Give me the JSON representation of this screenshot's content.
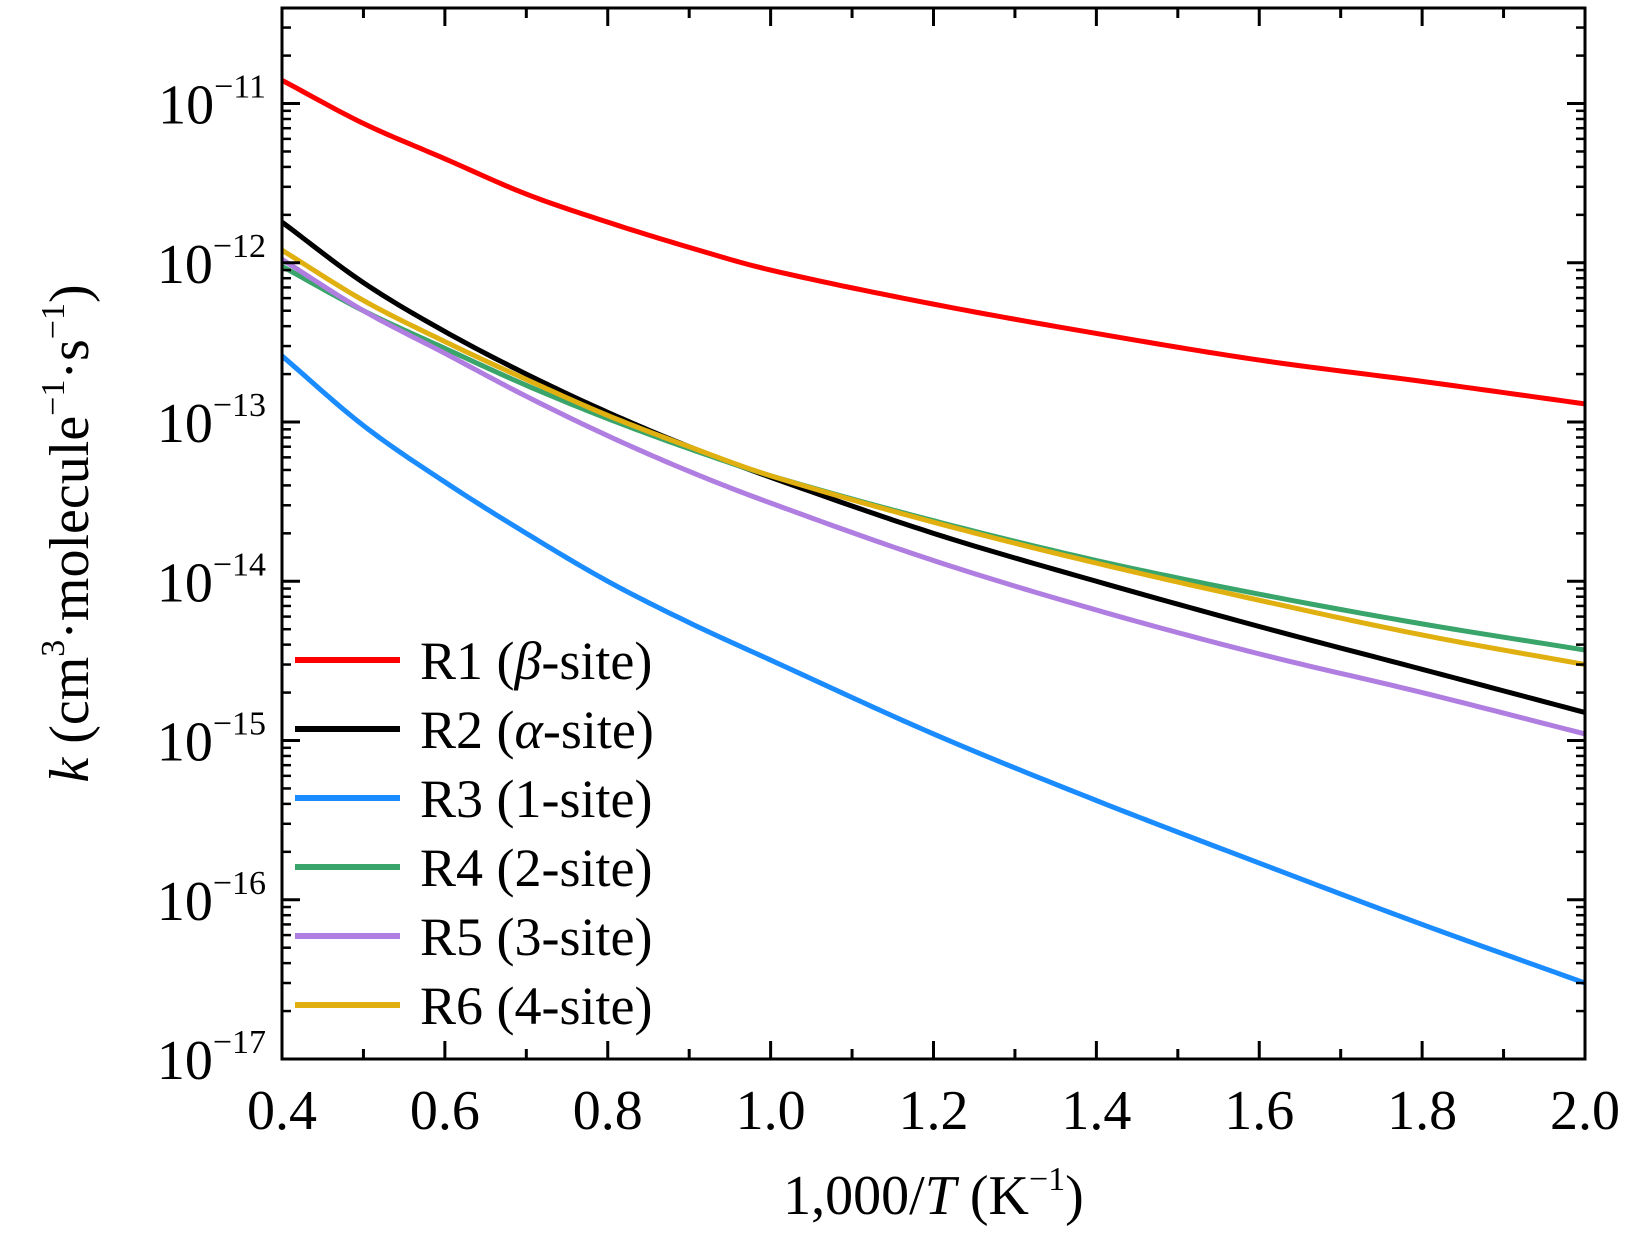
{
  "chart_data": {
    "type": "line",
    "title": "",
    "xlabel": {
      "prefix": "1,000/",
      "var": "T",
      "unit_open": " (K",
      "unit_sup": "−1",
      "unit_close": ")"
    },
    "ylabel": {
      "var": "k",
      "open": " (cm",
      "sup1": "3",
      "mid": "·molecule",
      "sup2": "−1",
      "mid2": "·s",
      "sup3": "−1",
      "close": ")"
    },
    "xlim": [
      0.4,
      2.0
    ],
    "ylim_log10": [
      -17,
      -10.4
    ],
    "y_scale": "log",
    "x_ticks": [
      {
        "value": 0.4,
        "label": "0.4"
      },
      {
        "value": 0.6,
        "label": "0.6"
      },
      {
        "value": 0.8,
        "label": "0.8"
      },
      {
        "value": 1.0,
        "label": "1.0"
      },
      {
        "value": 1.2,
        "label": "1.2"
      },
      {
        "value": 1.4,
        "label": "1.4"
      },
      {
        "value": 1.6,
        "label": "1.6"
      },
      {
        "value": 1.8,
        "label": "1.8"
      },
      {
        "value": 2.0,
        "label": "2.0"
      }
    ],
    "y_ticks": [
      {
        "exp": -11,
        "base": "10",
        "sup": "−11"
      },
      {
        "exp": -12,
        "base": "10",
        "sup": "−12"
      },
      {
        "exp": -13,
        "base": "10",
        "sup": "−13"
      },
      {
        "exp": -14,
        "base": "10",
        "sup": "−14"
      },
      {
        "exp": -15,
        "base": "10",
        "sup": "−15"
      },
      {
        "exp": -16,
        "base": "10",
        "sup": "−16"
      },
      {
        "exp": -17,
        "base": "10",
        "sup": "−17"
      }
    ],
    "legend_position": "bottom-left",
    "series": [
      {
        "name": "R1",
        "site": "β",
        "italic": true,
        "color": "#ff0000",
        "x": [
          0.4,
          0.5,
          0.6,
          0.7,
          0.8,
          0.9,
          1.0,
          1.2,
          1.4,
          1.6,
          1.8,
          2.0
        ],
        "y": [
          1.4e-11,
          7.5e-12,
          4.5e-12,
          2.7e-12,
          1.8e-12,
          1.25e-12,
          9e-13,
          5.5e-13,
          3.6e-13,
          2.45e-13,
          1.8e-13,
          1.3e-13
        ]
      },
      {
        "name": "R2",
        "site": "α",
        "italic": true,
        "color": "#000000",
        "x": [
          0.4,
          0.5,
          0.6,
          0.7,
          0.8,
          0.9,
          1.0,
          1.2,
          1.4,
          1.6,
          1.8,
          2.0
        ],
        "y": [
          1.8e-12,
          7.5e-13,
          3.7e-13,
          2e-13,
          1.15e-13,
          7e-14,
          4.5e-14,
          2e-14,
          1e-14,
          5.2e-15,
          2.8e-15,
          1.5e-15
        ]
      },
      {
        "name": "R3",
        "site": "1",
        "italic": false,
        "color": "#1a8cff",
        "x": [
          0.4,
          0.5,
          0.6,
          0.7,
          0.8,
          0.9,
          1.0,
          1.2,
          1.4,
          1.6,
          1.8,
          2.0
        ],
        "y": [
          2.6e-13,
          9.5e-14,
          4.2e-14,
          2e-14,
          1e-14,
          5.5e-15,
          3.2e-15,
          1.1e-15,
          4.2e-16,
          1.7e-16,
          7e-17,
          3e-17
        ]
      },
      {
        "name": "R4",
        "site": "2",
        "italic": false,
        "color": "#3aa56b",
        "x": [
          0.4,
          0.5,
          0.6,
          0.7,
          0.8,
          0.9,
          1.0,
          1.2,
          1.4,
          1.6,
          1.8,
          2.0
        ],
        "y": [
          9.5e-13,
          5e-13,
          2.9e-13,
          1.7e-13,
          1.05e-13,
          6.8e-14,
          4.6e-14,
          2.4e-14,
          1.35e-14,
          8.3e-15,
          5.4e-15,
          3.7e-15
        ]
      },
      {
        "name": "R5",
        "site": "3",
        "italic": false,
        "color": "#b07ee0",
        "x": [
          0.4,
          0.5,
          0.6,
          0.7,
          0.8,
          0.9,
          1.0,
          1.2,
          1.4,
          1.6,
          1.8,
          2.0
        ],
        "y": [
          1.05e-12,
          5e-13,
          2.7e-13,
          1.45e-13,
          8.2e-14,
          4.9e-14,
          3.1e-14,
          1.35e-14,
          6.6e-15,
          3.5e-15,
          2e-15,
          1.1e-15
        ]
      },
      {
        "name": "R6",
        "site": "4",
        "italic": false,
        "color": "#e0b010",
        "x": [
          0.4,
          0.5,
          0.6,
          0.7,
          0.8,
          0.9,
          1.0,
          1.2,
          1.4,
          1.6,
          1.8,
          2.0
        ],
        "y": [
          1.2e-12,
          5.8e-13,
          3.2e-13,
          1.85e-13,
          1.1e-13,
          7e-14,
          4.6e-14,
          2.35e-14,
          1.3e-14,
          7.6e-15,
          4.6e-15,
          3e-15
        ]
      }
    ]
  }
}
